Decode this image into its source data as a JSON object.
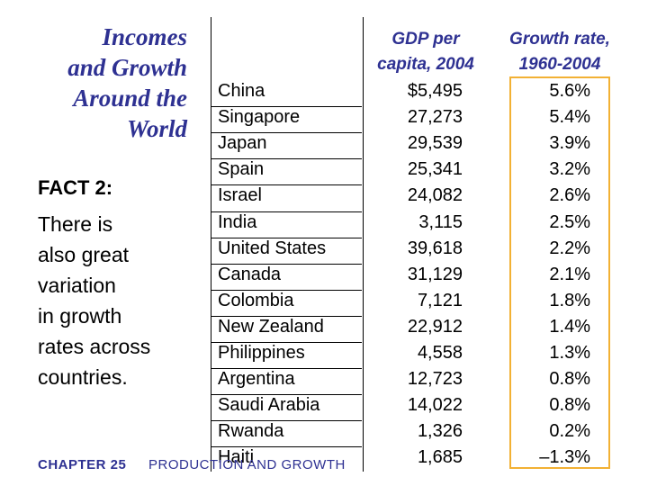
{
  "title": [
    "Incomes",
    "and Growth",
    "Around the",
    "World"
  ],
  "fact_label": "FACT 2:",
  "fact_text": [
    "There is",
    "also great",
    "variation",
    "in growth",
    "rates across",
    "countries."
  ],
  "headers": {
    "gdp": [
      "GDP per",
      "capita, 2004"
    ],
    "growth": [
      "Growth rate,",
      "1960-2004"
    ]
  },
  "rows": [
    {
      "country": "China",
      "gdp": "$5,495",
      "growth": "5.6%"
    },
    {
      "country": "Singapore",
      "gdp": "27,273",
      "growth": "5.4%"
    },
    {
      "country": "Japan",
      "gdp": "29,539",
      "growth": "3.9%"
    },
    {
      "country": "Spain",
      "gdp": "25,341",
      "growth": "3.2%"
    },
    {
      "country": "Israel",
      "gdp": "24,082",
      "growth": "2.6%"
    },
    {
      "country": "India",
      "gdp": "3,115",
      "growth": "2.5%"
    },
    {
      "country": "United States",
      "gdp": "39,618",
      "growth": "2.2%"
    },
    {
      "country": "Canada",
      "gdp": "31,129",
      "growth": "2.1%"
    },
    {
      "country": "Colombia",
      "gdp": "7,121",
      "growth": "1.8%"
    },
    {
      "country": "New Zealand",
      "gdp": "22,912",
      "growth": "1.4%"
    },
    {
      "country": "Philippines",
      "gdp": "4,558",
      "growth": "1.3%"
    },
    {
      "country": "Argentina",
      "gdp": "12,723",
      "growth": "0.8%"
    },
    {
      "country": "Saudi Arabia",
      "gdp": "14,022",
      "growth": "0.8%"
    },
    {
      "country": "Rwanda",
      "gdp": "1,326",
      "growth": "0.2%"
    },
    {
      "country": "Haiti",
      "gdp": "1,685",
      "growth": "–1.3%"
    }
  ],
  "footer": {
    "chapter": "CHAPTER 25",
    "name": "PRODUCTION AND GROWTH"
  },
  "colors": {
    "accent": "#2e3192",
    "highlight_box": "#f2b134"
  }
}
